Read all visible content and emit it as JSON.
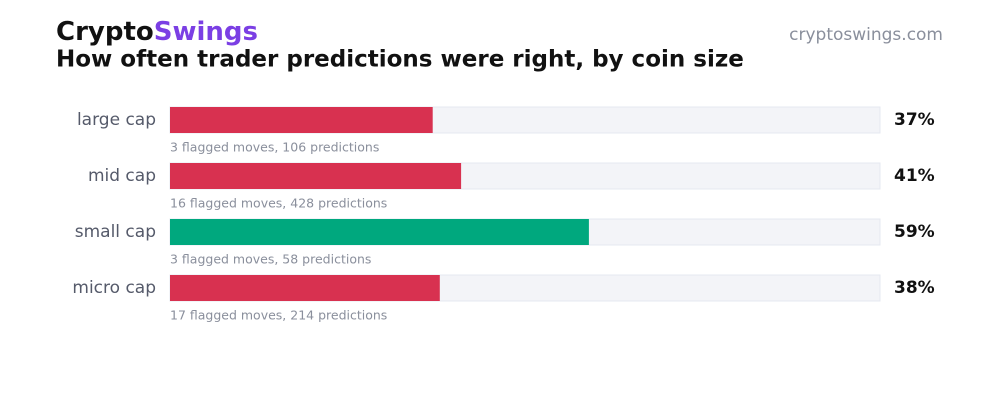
{
  "brand": {
    "first": "Crypto",
    "second": "Swings"
  },
  "site": "cryptoswings.com",
  "chart_data": {
    "type": "bar",
    "orientation": "horizontal",
    "title": "How often trader predictions were right, by coin size",
    "categories": [
      "large cap",
      "mid cap",
      "small cap",
      "micro cap"
    ],
    "values": [
      37,
      41,
      59,
      38
    ],
    "value_labels": [
      "37%",
      "41%",
      "59%",
      "38%"
    ],
    "notes": [
      "3 flagged moves, 106 predictions",
      "16 flagged moves, 428 predictions",
      "3 flagged moves, 58 predictions",
      "17 flagged moves, 214 predictions"
    ],
    "colors": [
      "#d83150",
      "#d83150",
      "#00a87e",
      "#d83150"
    ],
    "xlim": [
      0,
      100
    ]
  }
}
